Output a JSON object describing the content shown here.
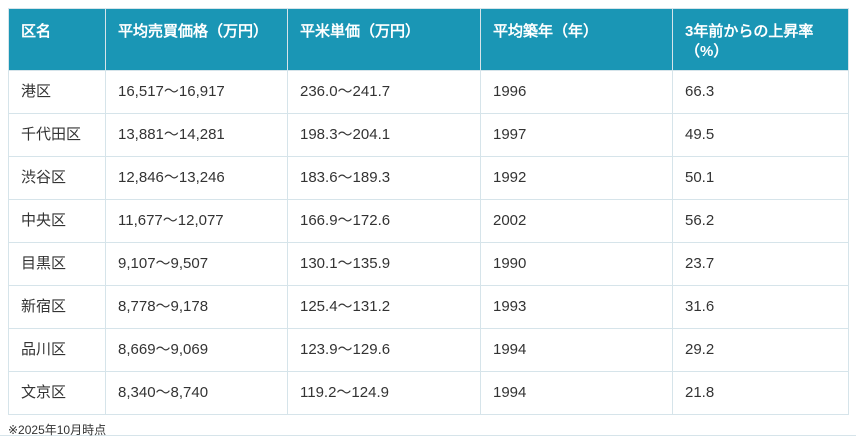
{
  "chart_data": {
    "type": "table",
    "title": "",
    "columns": [
      "区名",
      "平均売買価格（万円）",
      "平米単価（万円）",
      "平均築年（年）",
      "3年前からの上昇率（%）"
    ],
    "rows": [
      [
        "港区",
        "16,517〜16,917",
        "236.0〜241.7",
        "1996",
        "66.3"
      ],
      [
        "千代田区",
        "13,881〜14,281",
        "198.3〜204.1",
        "1997",
        "49.5"
      ],
      [
        "渋谷区",
        "12,846〜13,246",
        "183.6〜189.3",
        "1992",
        "50.1"
      ],
      [
        "中央区",
        "11,677〜12,077",
        "166.9〜172.6",
        "2002",
        "56.2"
      ],
      [
        "目黒区",
        "9,107〜9,507",
        "130.1〜135.9",
        "1990",
        "23.7"
      ],
      [
        "新宿区",
        "8,778〜9,178",
        "125.4〜131.2",
        "1993",
        "31.6"
      ],
      [
        "品川区",
        "8,669〜9,069",
        "123.9〜129.6",
        "1994",
        "29.2"
      ],
      [
        "文京区",
        "8,340〜8,740",
        "119.2〜124.9",
        "1994",
        "21.8"
      ]
    ],
    "footnote": "※2025年10月時点"
  },
  "colors": {
    "header_bg": "#1a96b5",
    "header_text": "#ffffff",
    "border": "#d6e4ea",
    "body_text": "#333333"
  }
}
